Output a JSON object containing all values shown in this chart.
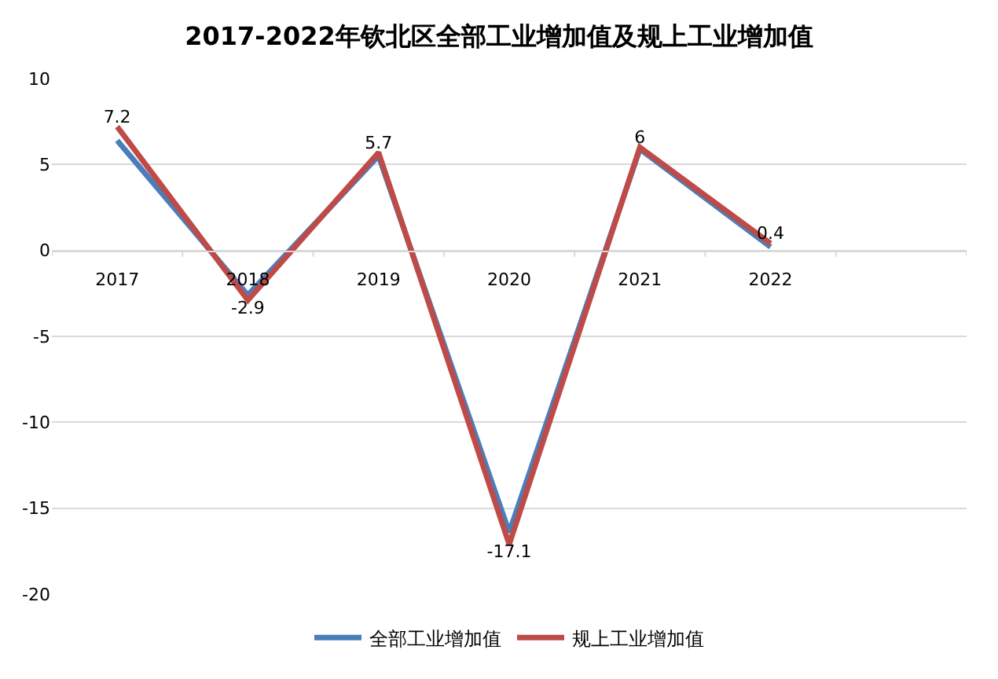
{
  "chart_data": {
    "type": "line",
    "title": "2017-2022年钦北区全部工业增加值及规上工业增加值",
    "categories": [
      "2017",
      "2018",
      "2019",
      "2020",
      "2021",
      "2022",
      null
    ],
    "series": [
      {
        "name": "全部工业增加值",
        "color": "#4a7ebb",
        "values": [
          6.4,
          -2.6,
          5.5,
          -16.4,
          5.9,
          0.2,
          null
        ]
      },
      {
        "name": "规上工业增加值",
        "color": "#be4b48",
        "values": [
          7.2,
          -2.9,
          5.7,
          -17.1,
          6,
          0.4,
          null
        ],
        "value_labels": [
          "7.2",
          "-2.9",
          "5.7",
          "-17.1",
          "6",
          "0.4",
          null
        ]
      }
    ],
    "ylim": [
      -20,
      10
    ],
    "yticks": [
      -20,
      -15,
      -10,
      -5,
      0,
      5,
      10
    ],
    "grid": "y",
    "legend": "bottom",
    "marker": "none",
    "line_style": "solid"
  }
}
